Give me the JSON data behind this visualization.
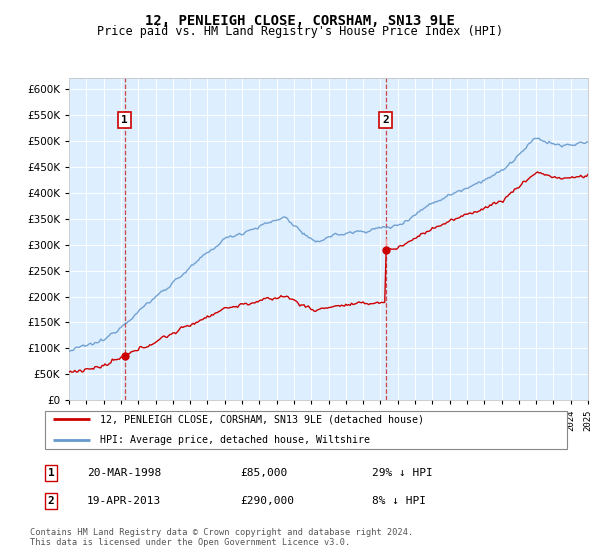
{
  "title": "12, PENLEIGH CLOSE, CORSHAM, SN13 9LE",
  "subtitle": "Price paid vs. HM Land Registry's House Price Index (HPI)",
  "ylabel_ticks": [
    "£0",
    "£50K",
    "£100K",
    "£150K",
    "£200K",
    "£250K",
    "£300K",
    "£350K",
    "£400K",
    "£450K",
    "£500K",
    "£550K",
    "£600K"
  ],
  "ylim": [
    0,
    620000
  ],
  "ytick_values": [
    0,
    50000,
    100000,
    150000,
    200000,
    250000,
    300000,
    350000,
    400000,
    450000,
    500000,
    550000,
    600000
  ],
  "hpi_color": "#6699cc",
  "price_color": "#cc0000",
  "plot_bg": "#ddeeff",
  "grid_color": "#ffffff",
  "marker1_year": 1998.22,
  "marker1_value": 85000,
  "marker2_year": 2013.3,
  "marker2_value": 290000,
  "legend_label1": "12, PENLEIGH CLOSE, CORSHAM, SN13 9LE (detached house)",
  "legend_label2": "HPI: Average price, detached house, Wiltshire",
  "note1_num": "1",
  "note1_date": "20-MAR-1998",
  "note1_price": "£85,000",
  "note1_hpi": "29% ↓ HPI",
  "note2_num": "2",
  "note2_date": "19-APR-2013",
  "note2_price": "£290,000",
  "note2_hpi": "8% ↓ HPI",
  "footer": "Contains HM Land Registry data © Crown copyright and database right 2024.\nThis data is licensed under the Open Government Licence v3.0.",
  "xmin": 1995,
  "xmax": 2025
}
